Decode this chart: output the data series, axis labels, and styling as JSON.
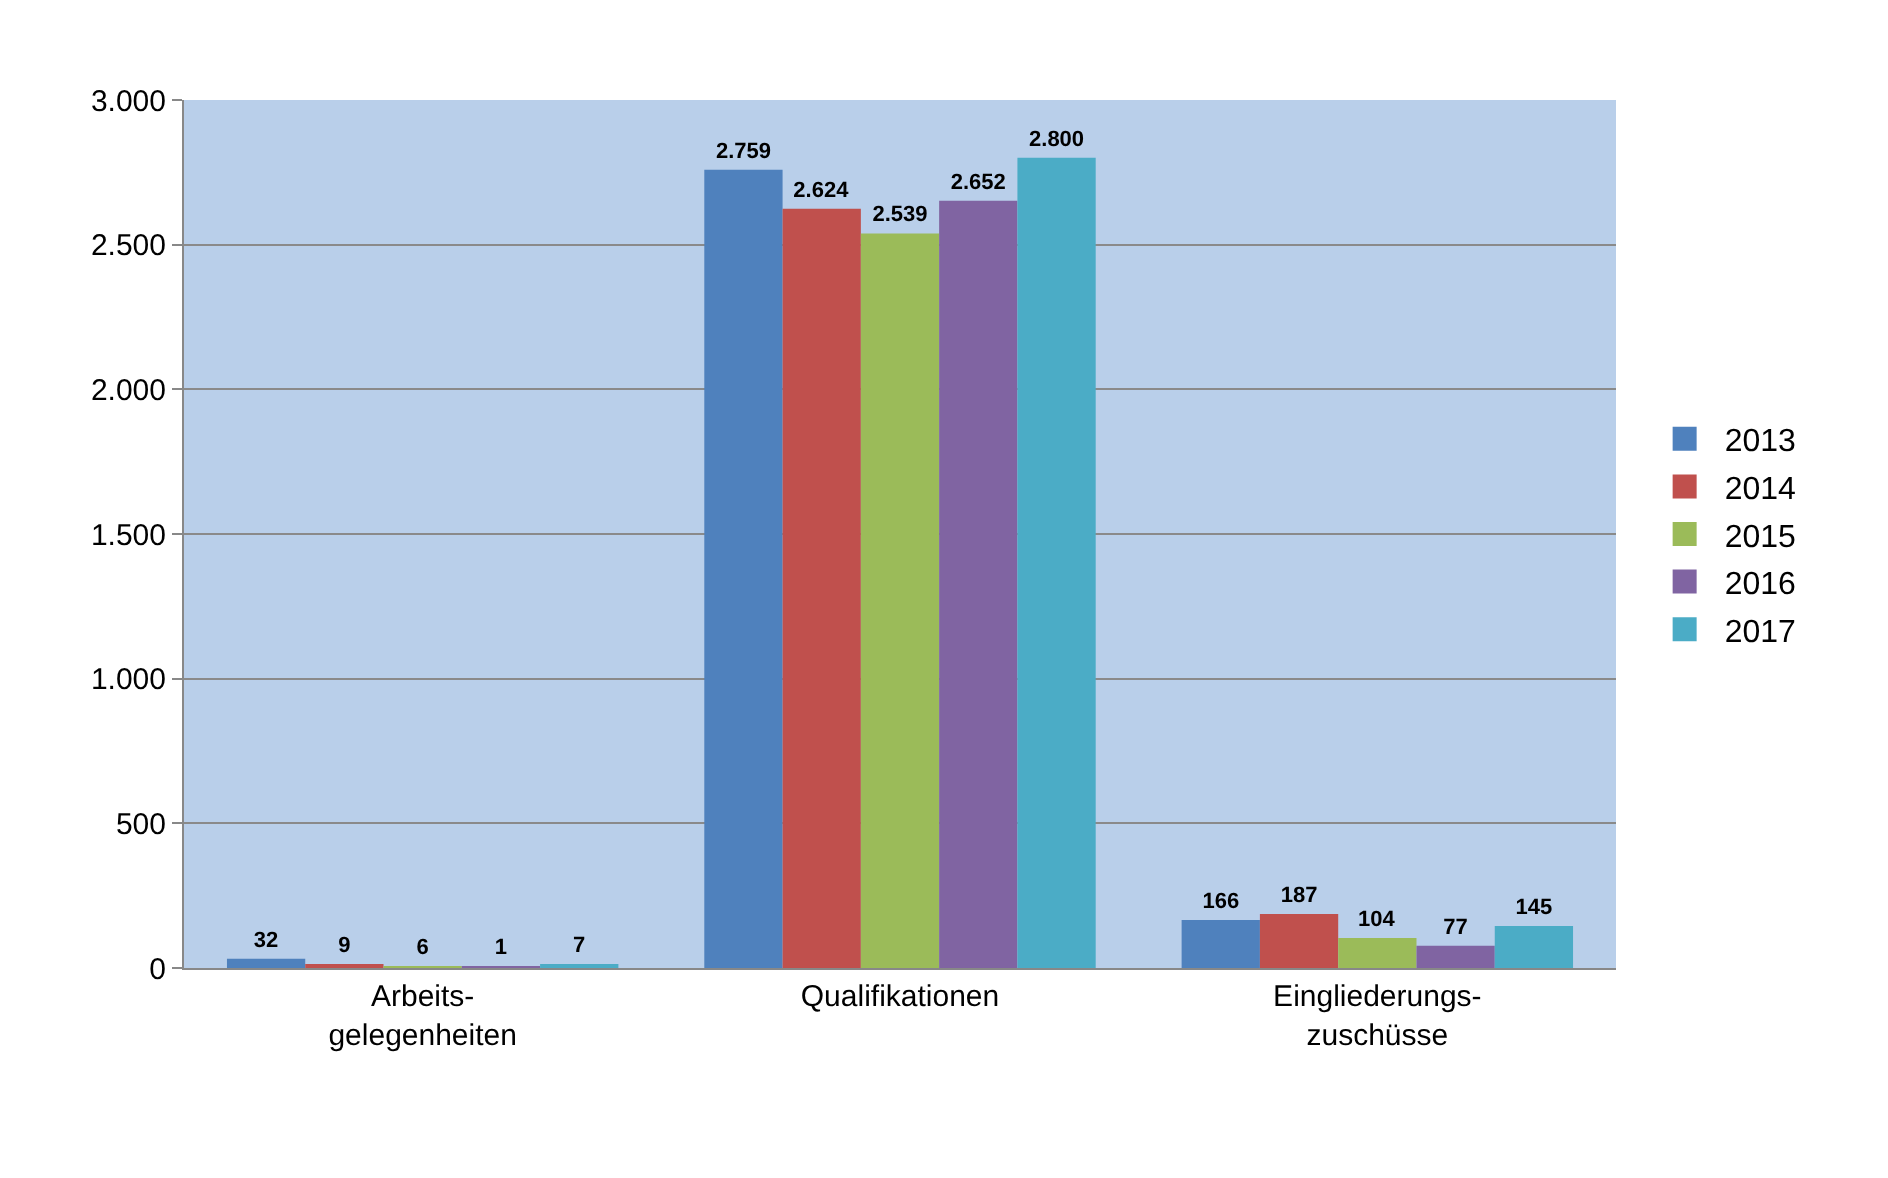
{
  "chart_data": {
    "type": "bar",
    "categories": [
      "Arbeits-\ngelegenheiten",
      "Qualifikationen",
      "Eingliederungs-\nzuschüsse"
    ],
    "series": [
      {
        "name": "2013",
        "color": "#4f81bd",
        "values": [
          32,
          2759,
          166
        ],
        "value_labels": [
          "32",
          "2.759",
          "166"
        ]
      },
      {
        "name": "2014",
        "color": "#c0504d",
        "values": [
          9,
          2624,
          187
        ],
        "value_labels": [
          "9",
          "2.624",
          "187"
        ]
      },
      {
        "name": "2015",
        "color": "#9bbb59",
        "values": [
          6,
          2539,
          104
        ],
        "value_labels": [
          "6",
          "2.539",
          "104"
        ]
      },
      {
        "name": "2016",
        "color": "#8064a2",
        "values": [
          1,
          2652,
          77
        ],
        "value_labels": [
          "1",
          "2.652",
          "77"
        ]
      },
      {
        "name": "2017",
        "color": "#4bacc6",
        "values": [
          7,
          2800,
          145
        ],
        "value_labels": [
          "7",
          "2.800",
          "145"
        ]
      }
    ],
    "ylim": [
      0,
      3000
    ],
    "yticks": [
      0,
      500,
      {
        "value": 1000,
        "label": "1.000"
      },
      {
        "value": 1500,
        "label": "1.500"
      },
      {
        "value": 2000,
        "label": "2.000"
      },
      {
        "value": 2500,
        "label": "2.500"
      },
      {
        "value": 3000,
        "label": "3.000"
      }
    ],
    "grid": "y",
    "legend": "right"
  }
}
